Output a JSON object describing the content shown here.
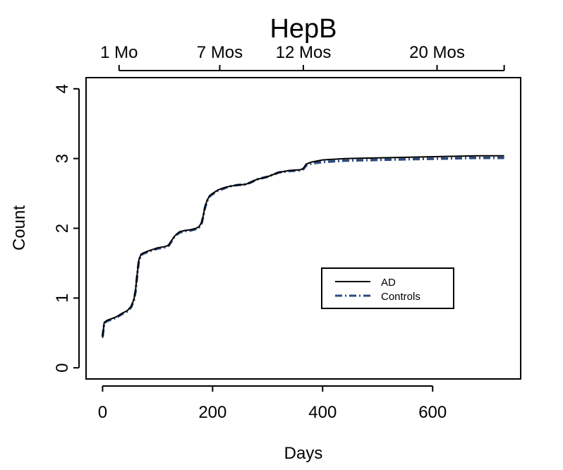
{
  "chart_data": {
    "type": "line",
    "title": "HepB",
    "xlabel": "Days",
    "ylabel": "Count",
    "xlim": [
      -30,
      760
    ],
    "ylim": [
      -0.16,
      4.16
    ],
    "x_ticks": [
      0,
      200,
      400,
      600
    ],
    "x_tick_labels": [
      "0",
      "200",
      "400",
      "600"
    ],
    "y_ticks": [
      0,
      1,
      2,
      3,
      4
    ],
    "y_tick_labels": [
      "0",
      "1",
      "2",
      "3",
      "4"
    ],
    "top_axis_ticks": [
      30,
      213,
      365,
      608,
      730
    ],
    "top_axis_labels": [
      "1 Mo",
      "7 Mos",
      "12 Mos",
      "20 Mos",
      ""
    ],
    "legend": {
      "position": "lower-right",
      "entries": [
        "AD",
        "Controls"
      ]
    },
    "colors": {
      "AD": "#000000",
      "Controls": "#2b4a7e"
    },
    "series": [
      {
        "name": "AD",
        "style": "solid",
        "x": [
          0,
          3,
          8,
          15,
          25,
          35,
          45,
          52,
          57,
          60,
          63,
          66,
          70,
          75,
          85,
          100,
          115,
          120,
          125,
          130,
          135,
          140,
          150,
          160,
          170,
          175,
          180,
          183,
          186,
          190,
          195,
          200,
          210,
          220,
          230,
          245,
          260,
          270,
          280,
          300,
          320,
          340,
          360,
          365,
          370,
          380,
          400,
          440,
          500,
          560,
          620,
          680,
          730
        ],
        "y": [
          0.43,
          0.65,
          0.68,
          0.7,
          0.73,
          0.78,
          0.82,
          0.88,
          0.98,
          1.12,
          1.35,
          1.55,
          1.63,
          1.65,
          1.68,
          1.72,
          1.74,
          1.76,
          1.82,
          1.88,
          1.92,
          1.95,
          1.97,
          1.98,
          2.0,
          2.02,
          2.08,
          2.18,
          2.3,
          2.4,
          2.47,
          2.5,
          2.55,
          2.58,
          2.6,
          2.62,
          2.63,
          2.66,
          2.7,
          2.74,
          2.8,
          2.83,
          2.84,
          2.86,
          2.92,
          2.95,
          2.98,
          3.0,
          3.01,
          3.02,
          3.03,
          3.04,
          3.04
        ]
      },
      {
        "name": "Controls",
        "style": "dashdot",
        "x": [
          0,
          3,
          8,
          15,
          25,
          35,
          45,
          52,
          57,
          60,
          63,
          66,
          70,
          75,
          85,
          100,
          115,
          120,
          125,
          130,
          135,
          140,
          150,
          160,
          170,
          175,
          180,
          183,
          186,
          190,
          195,
          200,
          210,
          220,
          230,
          245,
          260,
          270,
          280,
          300,
          320,
          340,
          360,
          365,
          370,
          380,
          400,
          440,
          500,
          560,
          620,
          680,
          730
        ],
        "y": [
          0.45,
          0.64,
          0.67,
          0.69,
          0.72,
          0.77,
          0.81,
          0.87,
          0.97,
          1.1,
          1.33,
          1.54,
          1.62,
          1.64,
          1.67,
          1.71,
          1.73,
          1.75,
          1.81,
          1.87,
          1.91,
          1.94,
          1.96,
          1.97,
          1.99,
          2.01,
          2.07,
          2.17,
          2.29,
          2.39,
          2.46,
          2.49,
          2.54,
          2.57,
          2.6,
          2.62,
          2.63,
          2.66,
          2.7,
          2.74,
          2.8,
          2.82,
          2.83,
          2.85,
          2.9,
          2.93,
          2.95,
          2.97,
          2.98,
          2.99,
          3.0,
          3.01,
          3.01
        ]
      }
    ]
  }
}
